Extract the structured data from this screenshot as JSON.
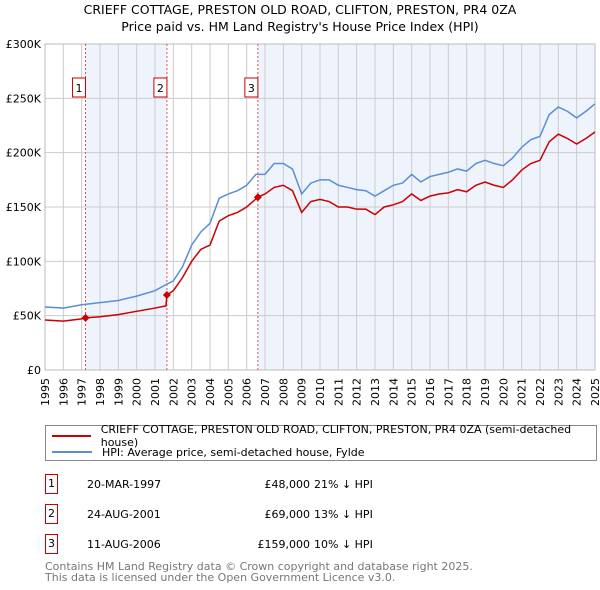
{
  "title": "CRIEFF COTTAGE, PRESTON OLD ROAD, CLIFTON, PRESTON, PR4 0ZA",
  "subtitle": "Price paid vs. HM Land Registry's House Price Index (HPI)",
  "chart_data": {
    "type": "line",
    "xlim": [
      1995,
      2025
    ],
    "ylim": [
      0,
      300000
    ],
    "yticks": [
      0,
      50000,
      100000,
      150000,
      200000,
      250000,
      300000
    ],
    "ytick_labels": [
      "£0",
      "£50K",
      "£100K",
      "£150K",
      "£200K",
      "£250K",
      "£300K"
    ],
    "xticks": [
      "1995",
      "1996",
      "1997",
      "1998",
      "1999",
      "2000",
      "2001",
      "2002",
      "2003",
      "2004",
      "2005",
      "2006",
      "2007",
      "2008",
      "2009",
      "2010",
      "2011",
      "2012",
      "2013",
      "2014",
      "2015",
      "2016",
      "2017",
      "2018",
      "2019",
      "2020",
      "2021",
      "2022",
      "2023",
      "2024",
      "2025"
    ],
    "grid": true,
    "series": [
      {
        "name": "CRIEFF COTTAGE, PRESTON OLD ROAD, CLIFTON, PRESTON, PR4 0ZA (semi-detached house)",
        "color": "#cc0000",
        "x": [
          1995,
          1996,
          1997,
          1997.21,
          1998,
          1999,
          2000,
          2001,
          2001.6,
          2001.65,
          2002,
          2002.5,
          2003,
          2003.5,
          2004,
          2004.5,
          2005,
          2005.5,
          2006,
          2006.61,
          2007,
          2007.5,
          2008,
          2008.5,
          2009,
          2009.5,
          2010,
          2010.5,
          2011,
          2011.5,
          2012,
          2012.5,
          2013,
          2013.5,
          2014,
          2014.5,
          2015,
          2015.5,
          2016,
          2016.5,
          2017,
          2017.5,
          2018,
          2018.5,
          2019,
          2019.5,
          2020,
          2020.5,
          2021,
          2021.5,
          2022,
          2022.5,
          2023,
          2023.5,
          2024,
          2024.5,
          2025
        ],
        "y": [
          46000,
          45000,
          47000,
          48000,
          49000,
          51000,
          54000,
          57000,
          59000,
          69000,
          73000,
          85000,
          100000,
          111000,
          115000,
          137000,
          142000,
          145000,
          150000,
          159000,
          162000,
          168000,
          170000,
          165000,
          145000,
          155000,
          157000,
          155000,
          150000,
          150000,
          148000,
          148000,
          143000,
          150000,
          152000,
          155000,
          162000,
          156000,
          160000,
          162000,
          163000,
          166000,
          164000,
          170000,
          173000,
          170000,
          168000,
          175000,
          184000,
          190000,
          193000,
          210000,
          217000,
          213000,
          208000,
          213000,
          219000
        ]
      },
      {
        "name": "HPI: Average price, semi-detached house, Fylde",
        "color": "#5b8fd4",
        "x": [
          1995,
          1996,
          1997,
          1998,
          1999,
          2000,
          2001,
          2001.65,
          2002,
          2002.5,
          2003,
          2003.5,
          2004,
          2004.5,
          2005,
          2005.5,
          2006,
          2006.5,
          2007,
          2007.5,
          2008,
          2008.5,
          2009,
          2009.5,
          2010,
          2010.5,
          2011,
          2011.5,
          2012,
          2012.5,
          2013,
          2013.5,
          2014,
          2014.5,
          2015,
          2015.5,
          2016,
          2016.5,
          2017,
          2017.5,
          2018,
          2018.5,
          2019,
          2019.5,
          2020,
          2020.5,
          2021,
          2021.5,
          2022,
          2022.5,
          2023,
          2023.5,
          2024,
          2024.5,
          2025
        ],
        "y": [
          58000,
          57000,
          60000,
          62000,
          64000,
          68000,
          73000,
          79000,
          82000,
          95000,
          115000,
          127000,
          135000,
          158000,
          162000,
          165000,
          170000,
          180000,
          180000,
          190000,
          190000,
          185000,
          162000,
          172000,
          175000,
          175000,
          170000,
          168000,
          166000,
          165000,
          160000,
          165000,
          170000,
          172000,
          180000,
          173000,
          178000,
          180000,
          182000,
          185000,
          183000,
          190000,
          193000,
          190000,
          188000,
          195000,
          205000,
          212000,
          215000,
          235000,
          242000,
          238000,
          232000,
          238000,
          245000
        ]
      }
    ],
    "sales": [
      {
        "label": "1",
        "date": "20-MAR-1997",
        "x": 1997.21,
        "price": "£48,000",
        "value": 48000,
        "hpi": "21% ↓ HPI"
      },
      {
        "label": "2",
        "date": "24-AUG-2001",
        "x": 2001.65,
        "price": "£69,000",
        "value": 69000,
        "hpi": "13% ↓ HPI"
      },
      {
        "label": "3",
        "date": "11-AUG-2006",
        "x": 2006.61,
        "price": "£159,000",
        "value": 159000,
        "hpi": "10% ↓ HPI"
      }
    ]
  },
  "legend": {
    "property": "CRIEFF COTTAGE, PRESTON OLD ROAD, CLIFTON, PRESTON, PR4 0ZA (semi-detached house)",
    "hpi": "HPI: Average price, semi-detached house, Fylde"
  },
  "footer": {
    "line1": "Contains HM Land Registry data © Crown copyright and database right 2025.",
    "line2": "This data is licensed under the Open Government Licence v3.0."
  }
}
